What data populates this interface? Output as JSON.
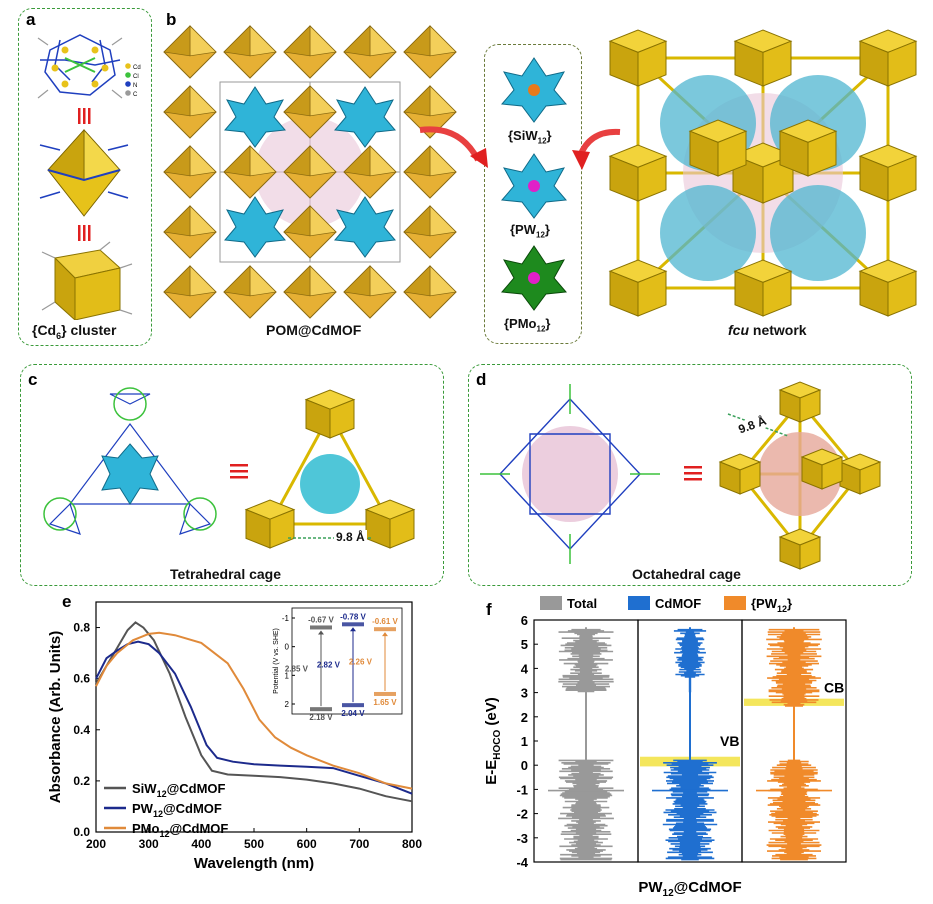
{
  "panels": {
    "a": {
      "letter": "a",
      "caption_pre": "{Cd",
      "caption_sub": "6",
      "caption_post": "} cluster",
      "legend": [
        "Cd",
        "Cl",
        "N",
        "C"
      ],
      "legend_colors": [
        "#e8c21a",
        "#3cc23c",
        "#1f3fbf",
        "#9a9a9a"
      ]
    },
    "b": {
      "letter": "b",
      "caption_left": "POM@CdMOF",
      "caption_right_italic": "fcu",
      "caption_right_rest": " network",
      "poms": [
        {
          "pre": "{SiW",
          "sub": "12",
          "post": "}",
          "color": "#2fb4d8",
          "core": "#e87a1a"
        },
        {
          "pre": "{PW",
          "sub": "12",
          "post": "}",
          "color": "#2fb4d8",
          "core": "#e020c8"
        },
        {
          "pre": "{PMo",
          "sub": "12",
          "post": "}",
          "color": "#1e8a1e",
          "core": "#e020c8"
        }
      ]
    },
    "c": {
      "letter": "c",
      "caption": "Tetrahedral cage",
      "distance": "9.8 Å"
    },
    "d": {
      "letter": "d",
      "caption": "Octahedral cage",
      "distance": "9.8 Å"
    },
    "e": {
      "letter": "e"
    },
    "f": {
      "letter": "f"
    }
  },
  "chart_data": [
    {
      "type": "line",
      "panel": "e",
      "xlabel": "Wavelength (nm)",
      "ylabel": "Absorbance (Arb. Units)",
      "xlim": [
        200,
        800
      ],
      "ylim": [
        0,
        0.9
      ],
      "xticks": [
        "200",
        "300",
        "400",
        "500",
        "600",
        "700",
        "800"
      ],
      "yticks": [
        "0.0",
        "0.2",
        "0.4",
        "0.6",
        "0.8"
      ],
      "series": [
        {
          "name_pre": "SiW",
          "name_sub": "12",
          "name_post": "@CdMOF",
          "color": "#555555",
          "points": [
            [
              200,
              0.58
            ],
            [
              220,
              0.65
            ],
            [
              240,
              0.72
            ],
            [
              260,
              0.79
            ],
            [
              275,
              0.82
            ],
            [
              290,
              0.8
            ],
            [
              310,
              0.75
            ],
            [
              340,
              0.62
            ],
            [
              370,
              0.45
            ],
            [
              400,
              0.3
            ],
            [
              420,
              0.24
            ],
            [
              450,
              0.225
            ],
            [
              500,
              0.22
            ],
            [
              550,
              0.215
            ],
            [
              600,
              0.205
            ],
            [
              650,
              0.19
            ],
            [
              700,
              0.17
            ],
            [
              750,
              0.14
            ],
            [
              800,
              0.12
            ]
          ]
        },
        {
          "name_pre": "PW",
          "name_sub": "12",
          "name_post": "@CdMOF",
          "color": "#1c2a8c",
          "points": [
            [
              200,
              0.6
            ],
            [
              220,
              0.68
            ],
            [
              240,
              0.71
            ],
            [
              260,
              0.735
            ],
            [
              280,
              0.745
            ],
            [
              300,
              0.735
            ],
            [
              320,
              0.7
            ],
            [
              350,
              0.62
            ],
            [
              380,
              0.49
            ],
            [
              410,
              0.34
            ],
            [
              430,
              0.29
            ],
            [
              460,
              0.275
            ],
            [
              500,
              0.265
            ],
            [
              550,
              0.26
            ],
            [
              600,
              0.255
            ],
            [
              650,
              0.25
            ],
            [
              700,
              0.22
            ],
            [
              750,
              0.19
            ],
            [
              800,
              0.15
            ]
          ]
        },
        {
          "name_pre": "PMo",
          "name_sub": "12",
          "name_post": "@CdMOF",
          "color": "#e08a3a",
          "points": [
            [
              200,
              0.57
            ],
            [
              220,
              0.65
            ],
            [
              240,
              0.7
            ],
            [
              270,
              0.75
            ],
            [
              300,
              0.775
            ],
            [
              320,
              0.78
            ],
            [
              350,
              0.77
            ],
            [
              400,
              0.74
            ],
            [
              450,
              0.66
            ],
            [
              480,
              0.56
            ],
            [
              510,
              0.44
            ],
            [
              540,
              0.37
            ],
            [
              570,
              0.33
            ],
            [
              600,
              0.3
            ],
            [
              650,
              0.26
            ],
            [
              700,
              0.23
            ],
            [
              750,
              0.19
            ],
            [
              800,
              0.17
            ]
          ]
        }
      ],
      "inset": {
        "ylabel": "Potential (V vs. SHE)",
        "yticks": [
          "-1",
          "0",
          "1",
          "2"
        ],
        "levels": [
          {
            "color": "#555555",
            "cb": "-0.67 V",
            "vb": "2.18 V",
            "gap": "2.85 V",
            "cb_val": -0.67,
            "vb_val": 2.18
          },
          {
            "color": "#1c2a8c",
            "cb": "-0.78 V",
            "vb": "2.04 V",
            "gap": "2.82 V",
            "cb_val": -0.78,
            "vb_val": 2.04
          },
          {
            "color": "#e08a3a",
            "cb": "-0.61 V",
            "vb": "1.65 V",
            "gap": "2.26 V",
            "cb_val": -0.61,
            "vb_val": 1.65
          }
        ]
      }
    },
    {
      "type": "area",
      "panel": "f",
      "title": "PW12@CdMOF",
      "ylabel_pre": "E-E",
      "ylabel_sub": "HOCO",
      "ylabel_post": " (eV)",
      "ylim": [
        -4,
        6
      ],
      "yticks": [
        "-4",
        "-3",
        "-2",
        "-1",
        "0",
        "1",
        "2",
        "3",
        "4",
        "5",
        "6"
      ],
      "legend": [
        {
          "label": "Total",
          "color": "#999999"
        },
        {
          "label": "CdMOF",
          "color": "#1f6fd0"
        },
        {
          "label_pre": "{PW",
          "label_sub": "12",
          "label_post": "}",
          "color": "#f08a2a"
        }
      ],
      "annotations": [
        {
          "text": "VB",
          "at": 0.1
        },
        {
          "text": "CB",
          "at": 2.6
        }
      ]
    }
  ]
}
